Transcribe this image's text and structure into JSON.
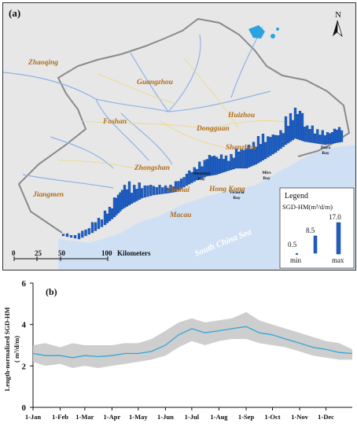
{
  "panel_a": {
    "label": "(a)",
    "north_symbol": "N",
    "city_labels": [
      {
        "id": "zhaoqing",
        "text": "Zhaoqing"
      },
      {
        "id": "guangzhou",
        "text": "Guangzhou"
      },
      {
        "id": "huizhou",
        "text": "Huizhou"
      },
      {
        "id": "foshan",
        "text": "Foshan"
      },
      {
        "id": "dongguan",
        "text": "Dongguan"
      },
      {
        "id": "shenzhen",
        "text": "Shenzhen"
      },
      {
        "id": "zhongshan",
        "text": "Zhongshan"
      },
      {
        "id": "zhuhai",
        "text": "Zhuhai"
      },
      {
        "id": "jiangmen",
        "text": "Jiangmen"
      },
      {
        "id": "hongkong",
        "text": "Hong Kong"
      },
      {
        "id": "macau",
        "text": "Macau"
      }
    ],
    "bay_labels": [
      {
        "id": "dayabay",
        "line1": "Daya",
        "line2": "Bay"
      },
      {
        "id": "shenzhenbay",
        "line1": "Shenzhen",
        "line2": "Bay"
      },
      {
        "id": "mirsbay",
        "line1": "Mirs",
        "line2": "Bay"
      },
      {
        "id": "victoriabay",
        "line1": "Victoria",
        "line2": "Bay"
      }
    ],
    "sea_label": "South China Sea",
    "scale_bar": {
      "ticks": [
        "0",
        "25",
        "50",
        "100"
      ],
      "unit": "Kilometers"
    },
    "legend": {
      "title": "Legend",
      "variable": "SGD-HM(m³/d/m)",
      "values": [
        "0.5",
        "8.5",
        "17.0"
      ],
      "min_label": "min",
      "max_label": "max"
    },
    "colors": {
      "land": "#e7e7e7",
      "sea": "#cfe0f5",
      "boundary": "#8a8a8a",
      "river": "#8fb3e6",
      "road": "#eed77a",
      "bar": "#1f5fc4",
      "city_text": "#b06d1c"
    }
  },
  "panel_b": {
    "label": "(b)",
    "chart_data": {
      "type": "line",
      "ylabel_line1": "Length-normalized SGD-HM",
      "ylabel_line2": "( m³/d/m)",
      "xlabel": "",
      "ylim": [
        0,
        6
      ],
      "yticks": [
        0,
        2,
        4,
        6
      ],
      "xlim": [
        1,
        365
      ],
      "xticks": [
        {
          "label": "1-Jan",
          "day": 1
        },
        {
          "label": "1-Feb",
          "day": 32
        },
        {
          "label": "1-Mar",
          "day": 60
        },
        {
          "label": "1-Apr",
          "day": 91
        },
        {
          "label": "1-May",
          "day": 121
        },
        {
          "label": "1-Jun",
          "day": 152
        },
        {
          "label": "1-Jul",
          "day": 182
        },
        {
          "label": "1-Aug",
          "day": 213
        },
        {
          "label": "1-Sep",
          "day": 244
        },
        {
          "label": "1-Oct",
          "day": 274
        },
        {
          "label": "1-Nov",
          "day": 305
        },
        {
          "label": "1-Dec",
          "day": 335
        }
      ],
      "series": [
        {
          "kind": "mean",
          "color": "#2fa8d8",
          "x": [
            1,
            15,
            32,
            46,
            60,
            75,
            91,
            106,
            121,
            136,
            152,
            167,
            182,
            197,
            213,
            228,
            244,
            259,
            274,
            289,
            305,
            320,
            335,
            350,
            365
          ],
          "y": [
            2.6,
            2.5,
            2.5,
            2.4,
            2.5,
            2.45,
            2.5,
            2.6,
            2.6,
            2.7,
            3.0,
            3.5,
            3.8,
            3.6,
            3.7,
            3.8,
            3.9,
            3.6,
            3.5,
            3.3,
            3.1,
            2.9,
            2.8,
            2.65,
            2.6
          ]
        },
        {
          "kind": "range",
          "color": "#c9c9c9",
          "x": [
            1,
            15,
            32,
            46,
            60,
            75,
            91,
            106,
            121,
            136,
            152,
            167,
            182,
            197,
            213,
            228,
            244,
            259,
            274,
            289,
            305,
            320,
            335,
            350,
            365
          ],
          "upper": [
            3.0,
            3.1,
            2.9,
            3.1,
            3.0,
            3.0,
            3.0,
            3.1,
            3.1,
            3.3,
            3.7,
            4.1,
            4.3,
            4.1,
            4.2,
            4.3,
            4.6,
            4.2,
            4.0,
            3.8,
            3.6,
            3.4,
            3.2,
            3.1,
            2.8
          ],
          "lower": [
            2.2,
            2.0,
            2.1,
            1.9,
            2.0,
            1.9,
            2.0,
            2.1,
            2.2,
            2.3,
            2.5,
            2.9,
            3.2,
            3.0,
            3.2,
            3.3,
            3.3,
            3.1,
            3.0,
            2.9,
            2.7,
            2.5,
            2.4,
            2.3,
            2.3
          ]
        }
      ]
    }
  }
}
